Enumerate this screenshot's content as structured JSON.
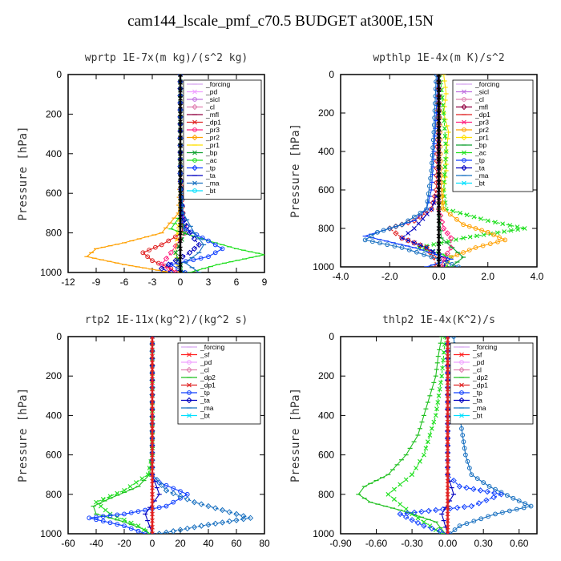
{
  "title": "cam144_lscale_pmf_c70.5  BUDGET at300E,15N",
  "colors": {
    "forcing": "#d8a8f0",
    "pd": "#f0a0ff",
    "sicl": "#c070e0",
    "cl": "#e080b0",
    "mfl": "#900040",
    "dp1": "#e02020",
    "dp2": "#20c020",
    "pr3": "#ff2080",
    "pr2": "#ffa000",
    "pr1": "#ffe000",
    "bp": "#10a030",
    "ac": "#20e020",
    "tp": "#1040ff",
    "ta": "#0000c0",
    "ma": "#1870c0",
    "bt": "#00e0ff",
    "sf": "#ff2020",
    "dark": "#000000"
  },
  "chart_data": [
    {
      "type": "line",
      "title": "wprtp   1E-7x(m kg)/(s^2 kg)",
      "ylabel": "Pressure [hPa]",
      "xlim": [
        -12,
        9
      ],
      "ylim": [
        1000,
        0
      ],
      "xticks": [
        -12,
        -9,
        -6,
        -3,
        0,
        3,
        6,
        9
      ],
      "xticklabels": [
        "-12",
        "-9",
        "-6",
        "-3",
        "0",
        "3",
        "6",
        "9"
      ],
      "yticks": [
        0,
        200,
        400,
        600,
        800,
        1000
      ],
      "yticklabels": [
        "0",
        "200",
        "400",
        "600",
        "800",
        "1000"
      ],
      "legend": [
        "_forcing",
        "_pd",
        "_sicl",
        "_cl",
        "_mfl",
        "_dp1",
        "_pr3",
        "_pr2",
        "_pr1",
        "_bp",
        "_ac",
        "_tp",
        "_ta",
        "_ma",
        "_bt"
      ],
      "series": [
        {
          "name": "_pr2",
          "color": "pr2",
          "pressure": [
            0,
            500,
            700,
            800,
            850,
            880,
            920,
            960,
            1000
          ],
          "values": [
            0,
            0,
            -0.2,
            -2,
            -6,
            -9,
            -10,
            -6,
            -1
          ]
        },
        {
          "name": "_pr1",
          "color": "pr1",
          "pressure": [
            0,
            500,
            700,
            800,
            900,
            1000
          ],
          "values": [
            0,
            0,
            0,
            -0.3,
            -0.5,
            -0.2
          ]
        },
        {
          "name": "_dp1",
          "color": "dp1",
          "pressure": [
            0,
            500,
            700,
            800,
            860,
            900,
            940,
            980,
            1000
          ],
          "values": [
            0,
            0,
            0.3,
            0.2,
            -2,
            -4,
            -3,
            -1,
            -0.5
          ]
        },
        {
          "name": "_pr3",
          "color": "pr3",
          "pressure": [
            0,
            500,
            700,
            800,
            900,
            960,
            1000
          ],
          "values": [
            0,
            0,
            0.2,
            0.5,
            -1,
            -2,
            -0.5
          ]
        },
        {
          "name": "_ac",
          "color": "ac",
          "pressure": [
            0,
            500,
            700,
            780,
            840,
            880,
            910,
            960,
            1000
          ],
          "values": [
            0,
            0,
            0.2,
            -1,
            3,
            6,
            9,
            4,
            1
          ]
        },
        {
          "name": "_bp",
          "color": "bp",
          "pressure": [
            0,
            500,
            700,
            800,
            900,
            1000
          ],
          "values": [
            0,
            0,
            0.1,
            0.5,
            -0.5,
            0.3
          ]
        },
        {
          "name": "_tp",
          "color": "tp",
          "pressure": [
            0,
            500,
            700,
            780,
            840,
            880,
            920,
            960,
            1000
          ],
          "values": [
            0,
            0,
            0.1,
            0.5,
            3,
            4.5,
            3,
            -1,
            0.5
          ]
        },
        {
          "name": "_ta",
          "color": "ta",
          "pressure": [
            0,
            500,
            700,
            800,
            860,
            900,
            940,
            980,
            1000
          ],
          "values": [
            0,
            0,
            0.2,
            1,
            2,
            1,
            -0.5,
            -2,
            -1
          ]
        },
        {
          "name": "_ma",
          "color": "ma",
          "pressure": [
            0,
            500,
            700,
            800,
            860,
            900,
            950,
            1000
          ],
          "values": [
            0,
            0,
            0.3,
            1.5,
            2.5,
            2,
            0.5,
            2
          ]
        },
        {
          "name": "_forcing",
          "color": "dark",
          "pressure": [
            0,
            200,
            400,
            600,
            800,
            1000
          ],
          "values": [
            0,
            0,
            0,
            0,
            0,
            0
          ]
        }
      ]
    },
    {
      "type": "line",
      "title": "wpthlp   1E-4x(m K)/s^2",
      "ylabel": "Pressure [hPa]",
      "xlim": [
        -4,
        4
      ],
      "ylim": [
        1000,
        0
      ],
      "xticks": [
        -4,
        -2,
        0,
        2,
        4
      ],
      "xticklabels": [
        "-4.0",
        "-2.0",
        "0.0",
        "2.0",
        "4.0"
      ],
      "yticks": [
        0,
        200,
        400,
        600,
        800,
        1000
      ],
      "yticklabels": [
        "0",
        "200",
        "400",
        "600",
        "800",
        "1000"
      ],
      "legend": [
        "_forcing",
        "_sicl",
        "_cl",
        "_mfl",
        "_dp1",
        "_pr3",
        "_pr2",
        "_pr1",
        "_bp",
        "_ac",
        "_tp",
        "_ta",
        "_ma",
        "_bt"
      ],
      "series": [
        {
          "name": "_pr1",
          "color": "pr1",
          "pressure": [
            0,
            100,
            200,
            300,
            400,
            500,
            600,
            700
          ],
          "values": [
            0.2,
            0.3,
            0.2,
            0.4,
            0.3,
            0.3,
            0.2,
            0.1
          ]
        },
        {
          "name": "_ac",
          "color": "ac",
          "pressure": [
            0,
            200,
            400,
            600,
            700,
            760,
            800,
            850,
            900,
            950,
            1000
          ],
          "values": [
            0.05,
            0.2,
            0.3,
            0.2,
            0.3,
            2,
            3.5,
            1,
            -0.8,
            0.5,
            0.3
          ]
        },
        {
          "name": "_pr2",
          "color": "pr2",
          "pressure": [
            0,
            600,
            700,
            780,
            820,
            860,
            900,
            950,
            1000
          ],
          "values": [
            0,
            0.1,
            0.2,
            1,
            2,
            2.7,
            1.5,
            0.5,
            0.2
          ]
        },
        {
          "name": "_dp1",
          "color": "dp1",
          "pressure": [
            0,
            600,
            700,
            760,
            800,
            850,
            900,
            950,
            1000
          ],
          "values": [
            0,
            -0.1,
            -0.3,
            -1,
            -2,
            -1.5,
            -0.5,
            -0.2,
            -0.1
          ]
        },
        {
          "name": "_tp",
          "color": "tp",
          "pressure": [
            0,
            200,
            400,
            600,
            700,
            760,
            800,
            840,
            900,
            960,
            1000
          ],
          "values": [
            -0.05,
            -0.1,
            -0.2,
            -0.3,
            -0.5,
            -1,
            -2,
            -3,
            -1,
            0.5,
            -0.5
          ]
        },
        {
          "name": "_ta",
          "color": "ta",
          "pressure": [
            0,
            600,
            700,
            800,
            850,
            900,
            960,
            1000
          ],
          "values": [
            0,
            0,
            -0.3,
            -1,
            -1.5,
            -0.5,
            0.3,
            0.2
          ]
        },
        {
          "name": "_ma",
          "color": "ma",
          "pressure": [
            0,
            300,
            500,
            700,
            780,
            820,
            860,
            900,
            960,
            1000
          ],
          "values": [
            -0.1,
            -0.2,
            -0.3,
            -0.5,
            -1.5,
            -2.5,
            -3,
            -1.5,
            0,
            0.8
          ]
        },
        {
          "name": "_pr3",
          "color": "pr3",
          "pressure": [
            0,
            700,
            800,
            850,
            900,
            960,
            1000
          ],
          "values": [
            0,
            0,
            0.2,
            0.5,
            0.5,
            0.2,
            0.1
          ]
        },
        {
          "name": "_bp",
          "color": "bp",
          "pressure": [
            0,
            700,
            850,
            950,
            1000
          ],
          "values": [
            0,
            0,
            0.1,
            1,
            0.5
          ]
        },
        {
          "name": "_forcing",
          "color": "dark",
          "pressure": [
            0,
            200,
            400,
            600,
            800,
            1000
          ],
          "values": [
            0,
            0,
            0,
            0,
            0,
            0
          ]
        }
      ]
    },
    {
      "type": "line",
      "title": "rtp2   1E-11x(kg^2)/(kg^2 s)",
      "ylabel": "Pressure [hPa]",
      "xlim": [
        -60,
        80
      ],
      "ylim": [
        1000,
        0
      ],
      "xticks": [
        -60,
        -40,
        -20,
        0,
        20,
        40,
        60,
        80
      ],
      "xticklabels": [
        "-60",
        "-40",
        "-20",
        "0",
        "20",
        "40",
        "60",
        "80"
      ],
      "yticks": [
        0,
        200,
        400,
        600,
        800,
        1000
      ],
      "yticklabels": [
        "0",
        "200",
        "400",
        "600",
        "800",
        "1000"
      ],
      "legend": [
        "_forcing",
        "_sf",
        "_pd",
        "_cl",
        "_dp2",
        "_dp1",
        "_tp",
        "_ta",
        "_ma",
        "_bt"
      ],
      "series": [
        {
          "name": "_dp2",
          "color": "dp2",
          "pressure": [
            0,
            600,
            700,
            760,
            820,
            860,
            900,
            940,
            980,
            1000
          ],
          "values": [
            0,
            0,
            -2,
            -10,
            -30,
            -42,
            -40,
            -20,
            -5,
            -2
          ]
        },
        {
          "name": "_dp1",
          "color": "ac",
          "pressure": [
            0,
            600,
            700,
            780,
            840,
            900,
            960,
            1000
          ],
          "values": [
            0,
            0,
            -3,
            -20,
            -40,
            -30,
            -10,
            -2
          ]
        },
        {
          "name": "_tp",
          "color": "tp",
          "pressure": [
            0,
            700,
            740,
            800,
            860,
            900,
            920,
            960,
            1000
          ],
          "values": [
            0,
            0,
            5,
            25,
            10,
            -20,
            -45,
            -20,
            -5
          ]
        },
        {
          "name": "_ma",
          "color": "ma",
          "pressure": [
            0,
            700,
            780,
            840,
            880,
            920,
            960,
            1000
          ],
          "values": [
            0,
            0,
            10,
            30,
            50,
            70,
            35,
            5
          ]
        },
        {
          "name": "_ta",
          "color": "ta",
          "pressure": [
            0,
            700,
            800,
            900,
            1000
          ],
          "values": [
            0,
            0,
            5,
            -5,
            0
          ]
        },
        {
          "name": "_forcing",
          "color": "dp1",
          "pressure": [
            0,
            100,
            200,
            300,
            400,
            500,
            600,
            700,
            800,
            900,
            1000
          ],
          "values": [
            0,
            0,
            0,
            0,
            0,
            0,
            0,
            0,
            0,
            0,
            0
          ]
        }
      ]
    },
    {
      "type": "line",
      "title": "thlp2   1E-4x(K^2)/s",
      "ylabel": "Pressure [hPa]",
      "xlim": [
        -0.9,
        0.75
      ],
      "ylim": [
        1000,
        0
      ],
      "xticks": [
        -0.9,
        -0.6,
        -0.3,
        0,
        0.3,
        0.6
      ],
      "xticklabels": [
        "-0.90",
        "-0.60",
        "-0.30",
        "0.00",
        "0.30",
        "0.60"
      ],
      "yticks": [
        0,
        200,
        400,
        600,
        800,
        1000
      ],
      "yticklabels": [
        "0",
        "200",
        "400",
        "600",
        "800",
        "1000"
      ],
      "legend": [
        "_forcing",
        "_sf",
        "_pd",
        "_cl",
        "_dp2",
        "_dp1",
        "_tp",
        "_ta",
        "_ma",
        "_bt"
      ],
      "series": [
        {
          "name": "_dp2",
          "color": "dp2",
          "pressure": [
            0,
            100,
            200,
            300,
            400,
            500,
            600,
            700,
            760,
            800,
            840,
            880,
            940,
            1000
          ],
          "values": [
            -0.05,
            -0.08,
            -0.1,
            -0.15,
            -0.2,
            -0.25,
            -0.35,
            -0.5,
            -0.7,
            -0.75,
            -0.65,
            -0.4,
            -0.1,
            -0.02
          ]
        },
        {
          "name": "_dp1",
          "color": "ac",
          "pressure": [
            0,
            200,
            400,
            600,
            700,
            800,
            900,
            1000
          ],
          "values": [
            -0.02,
            -0.05,
            -0.1,
            -0.2,
            -0.3,
            -0.5,
            -0.3,
            -0.05
          ]
        },
        {
          "name": "_ma",
          "color": "ma",
          "pressure": [
            0,
            200,
            400,
            600,
            700,
            760,
            820,
            860,
            900,
            960,
            1000
          ],
          "values": [
            0.05,
            0.08,
            0.1,
            0.15,
            0.2,
            0.35,
            0.55,
            0.7,
            0.4,
            0.1,
            0.02
          ]
        },
        {
          "name": "_tp",
          "color": "tp",
          "pressure": [
            0,
            700,
            760,
            800,
            860,
            900,
            960,
            1000
          ],
          "values": [
            0,
            0,
            0.1,
            0.45,
            0.2,
            -0.4,
            -0.2,
            0
          ]
        },
        {
          "name": "_ta",
          "color": "ta",
          "pressure": [
            0,
            700,
            800,
            900,
            1000
          ],
          "values": [
            0,
            0,
            0.05,
            -0.05,
            0
          ]
        },
        {
          "name": "_forcing",
          "color": "dp1",
          "pressure": [
            0,
            100,
            200,
            300,
            400,
            500,
            600,
            700,
            800,
            900,
            1000
          ],
          "values": [
            0,
            0,
            0,
            0,
            0,
            0,
            0,
            0,
            0,
            0,
            0
          ]
        }
      ]
    }
  ]
}
